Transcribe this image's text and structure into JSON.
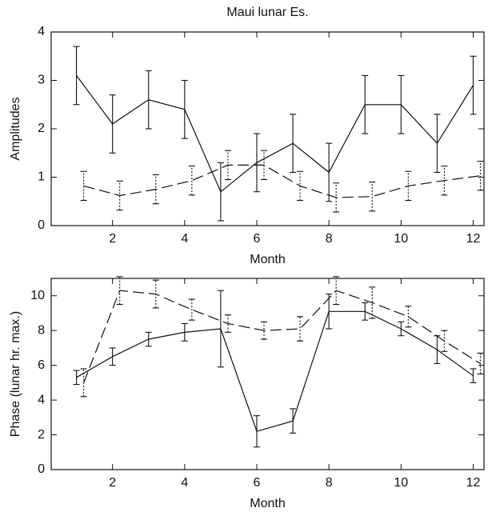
{
  "chart_data": [
    {
      "type": "line",
      "title": "Maui lunar Es.",
      "y_label": "Amplitudes",
      "x_label": "Month",
      "xlim": [
        0.3,
        12.3
      ],
      "xticks": [
        2,
        4,
        6,
        8,
        10,
        12
      ],
      "ylim": [
        0,
        4
      ],
      "yticks": [
        0,
        1,
        2,
        3,
        4
      ],
      "series": [
        {
          "color": "#111111",
          "linestyle": "solid",
          "x": [
            1,
            2,
            3,
            4,
            5,
            6,
            7,
            8,
            9,
            10,
            11,
            12
          ],
          "values": [
            3.1,
            2.1,
            2.6,
            2.4,
            0.7,
            1.3,
            1.7,
            1.1,
            2.5,
            2.5,
            1.7,
            2.9
          ],
          "errors": [
            0.6,
            0.6,
            0.6,
            0.6,
            0.6,
            0.6,
            0.6,
            0.6,
            0.6,
            0.6,
            0.6,
            0.6
          ]
        },
        {
          "color": "#111111",
          "linestyle": "dashed",
          "x": [
            1.2,
            2.2,
            3.2,
            4.2,
            5.2,
            6.2,
            7.2,
            8.2,
            9.2,
            10.2,
            11.2,
            12.2
          ],
          "values": [
            0.82,
            0.62,
            0.75,
            0.93,
            1.25,
            1.25,
            0.82,
            0.58,
            0.6,
            0.82,
            0.93,
            1.03
          ],
          "errors": [
            0.3,
            0.3,
            0.3,
            0.3,
            0.3,
            0.3,
            0.3,
            0.3,
            0.3,
            0.3,
            0.3,
            0.3
          ]
        }
      ]
    },
    {
      "type": "line",
      "y_label": "Phase (lunar hr. max.)",
      "x_label": "Month",
      "xlim": [
        0.3,
        12.3
      ],
      "xticks": [
        2,
        4,
        6,
        8,
        10,
        12
      ],
      "ylim": [
        0,
        11
      ],
      "yticks": [
        0,
        2,
        4,
        6,
        8,
        10
      ],
      "series": [
        {
          "color": "#111111",
          "linestyle": "solid",
          "x": [
            1,
            2,
            3,
            4,
            5,
            6,
            7,
            8,
            9,
            10,
            11,
            12
          ],
          "values": [
            5.3,
            6.5,
            7.5,
            7.9,
            8.1,
            2.2,
            2.8,
            9.1,
            9.1,
            8.1,
            6.9,
            5.4
          ],
          "errors": [
            0.4,
            0.5,
            0.4,
            0.5,
            2.2,
            0.9,
            0.7,
            1.0,
            0.5,
            0.4,
            0.8,
            0.4
          ]
        },
        {
          "color": "#111111",
          "linestyle": "dashed",
          "x": [
            1.2,
            2.2,
            3.2,
            4.2,
            5.2,
            6.2,
            7.2,
            8.2,
            9.2,
            10.2,
            11.2,
            12.2
          ],
          "values": [
            5.0,
            10.3,
            10.1,
            9.2,
            8.4,
            8.0,
            8.1,
            10.3,
            9.6,
            8.8,
            7.4,
            6.1
          ],
          "errors": [
            0.8,
            0.8,
            0.8,
            0.6,
            0.5,
            0.5,
            0.7,
            0.8,
            0.9,
            0.6,
            0.6,
            0.6
          ]
        }
      ]
    }
  ]
}
